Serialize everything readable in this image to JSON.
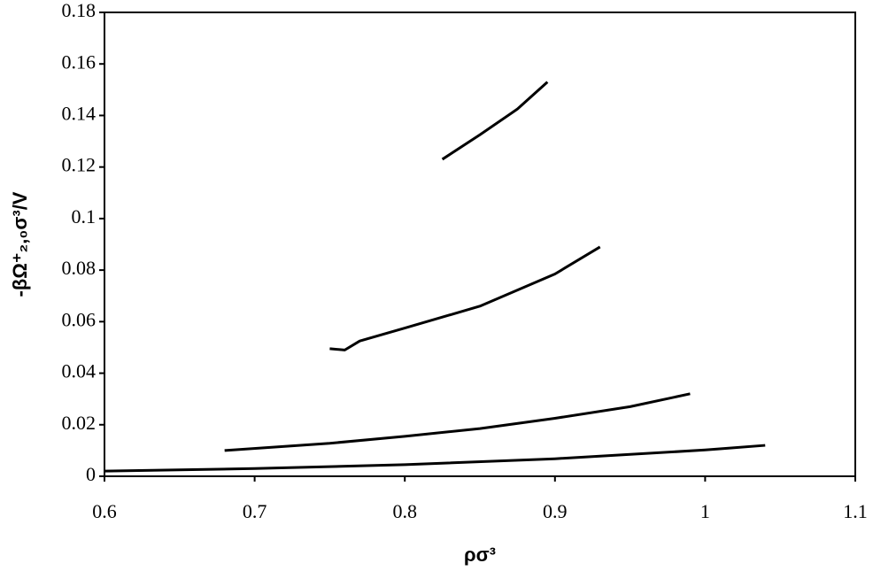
{
  "chart_data": {
    "type": "line",
    "x_label": "ρσ³",
    "y_label": "-βΩ⁺₂,₀σ³/V",
    "xlim": [
      0.6,
      1.1
    ],
    "xticks": [
      0.6,
      0.7,
      0.8,
      0.9,
      1,
      1.1
    ],
    "ylim": [
      0,
      0.18
    ],
    "yticks": [
      0,
      0.02,
      0.04,
      0.06,
      0.08,
      0.1,
      0.12,
      0.14,
      0.16,
      0.18
    ],
    "grid": false,
    "series": [
      {
        "color": "#000000",
        "x": [
          0.6,
          0.7,
          0.8,
          0.9,
          1.0,
          1.04
        ],
        "values": [
          0.002,
          0.003,
          0.0045,
          0.0068,
          0.0102,
          0.012
        ]
      },
      {
        "color": "#000000",
        "x": [
          0.68,
          0.75,
          0.8,
          0.85,
          0.9,
          0.95,
          0.99
        ],
        "values": [
          0.01,
          0.0128,
          0.0155,
          0.0185,
          0.0225,
          0.027,
          0.032
        ]
      },
      {
        "color": "#000000",
        "x": [
          0.75,
          0.76,
          0.77,
          0.8,
          0.85,
          0.9,
          0.93
        ],
        "values": [
          0.0495,
          0.049,
          0.0525,
          0.0575,
          0.066,
          0.0785,
          0.089
        ]
      },
      {
        "color": "#000000",
        "x": [
          0.825,
          0.85,
          0.875,
          0.895
        ],
        "values": [
          0.123,
          0.1325,
          0.1425,
          0.153
        ]
      }
    ]
  }
}
